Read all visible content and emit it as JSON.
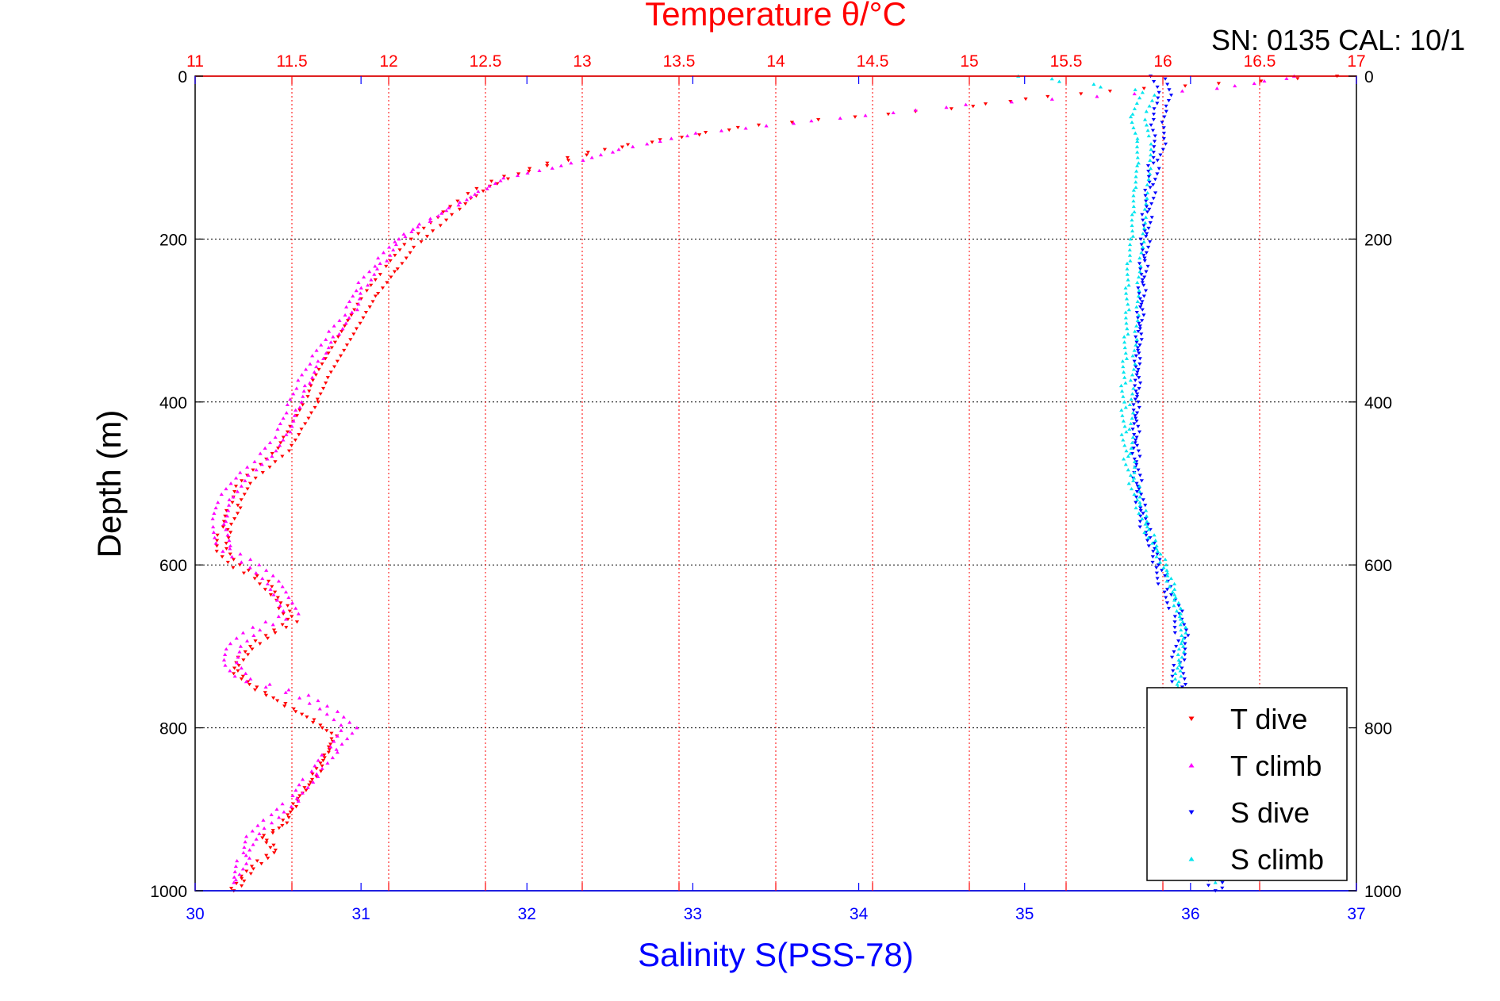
{
  "chart_data": {
    "type": "scatter",
    "title": "Temperature θ/°C",
    "annotation": "SN: 0135  CAL: 10/1",
    "ylabel": "Depth (m)",
    "xlabel_bottom": "Salinity S(PSS-78)",
    "xlabel_top": "Temperature θ/°C",
    "ylim": [
      0,
      1000
    ],
    "y_reversed": true,
    "salinity_lim": [
      30,
      37
    ],
    "temperature_lim": [
      11,
      17
    ],
    "y_ticks": [
      "0",
      "200",
      "400",
      "600",
      "800",
      "1000"
    ],
    "salinity_ticks": [
      "30",
      "31",
      "32",
      "33",
      "34",
      "35",
      "36",
      "37"
    ],
    "temperature_ticks": [
      "11",
      "11.5",
      "12",
      "12.5",
      "13",
      "13.5",
      "14",
      "14.5",
      "15",
      "15.5",
      "16",
      "16.5",
      "17"
    ],
    "grid": true,
    "legend_position": "bottom-right",
    "colors": {
      "temperature": "#ff0000",
      "salinity": "#0000ff",
      "grid": "#000000",
      "t_dive": "#ff0000",
      "t_climb": "#ff00ff",
      "s_dive": "#0000ff",
      "s_climb": "#00e5ee"
    },
    "series": [
      {
        "name": "T dive",
        "axis": "temperature",
        "marker": "triangle-down",
        "points": [
          [
            16.9,
            0
          ],
          [
            15.9,
            15
          ],
          [
            15.4,
            25
          ],
          [
            14.9,
            40
          ],
          [
            14.4,
            50
          ],
          [
            13.9,
            60
          ],
          [
            13.5,
            75
          ],
          [
            13.1,
            90
          ],
          [
            12.8,
            110
          ],
          [
            12.65,
            120
          ],
          [
            12.5,
            135
          ],
          [
            12.4,
            150
          ],
          [
            12.3,
            170
          ],
          [
            12.2,
            190
          ],
          [
            12.1,
            210
          ],
          [
            12.0,
            240
          ],
          [
            11.9,
            270
          ],
          [
            11.85,
            290
          ],
          [
            11.8,
            310
          ],
          [
            11.75,
            330
          ],
          [
            11.7,
            350
          ],
          [
            11.65,
            370
          ],
          [
            11.6,
            400
          ],
          [
            11.55,
            420
          ],
          [
            11.5,
            440
          ],
          [
            11.45,
            460
          ],
          [
            11.35,
            480
          ],
          [
            11.25,
            500
          ],
          [
            11.2,
            530
          ],
          [
            11.15,
            560
          ],
          [
            11.13,
            580
          ],
          [
            11.2,
            600
          ],
          [
            11.35,
            620
          ],
          [
            11.45,
            650
          ],
          [
            11.5,
            670
          ],
          [
            11.35,
            690
          ],
          [
            11.25,
            710
          ],
          [
            11.2,
            730
          ],
          [
            11.3,
            750
          ],
          [
            11.45,
            770
          ],
          [
            11.6,
            790
          ],
          [
            11.72,
            810
          ],
          [
            11.68,
            830
          ],
          [
            11.62,
            860
          ],
          [
            11.55,
            880
          ],
          [
            11.5,
            900
          ],
          [
            11.45,
            920
          ],
          [
            11.35,
            935
          ],
          [
            11.42,
            950
          ],
          [
            11.3,
            970
          ],
          [
            11.25,
            985
          ],
          [
            11.2,
            1000
          ]
        ]
      },
      {
        "name": "T climb",
        "axis": "temperature",
        "marker": "triangle-up",
        "points": [
          [
            16.7,
            0
          ],
          [
            16.3,
            15
          ],
          [
            15.0,
            35
          ],
          [
            14.2,
            55
          ],
          [
            13.6,
            70
          ],
          [
            13.2,
            90
          ],
          [
            12.9,
            110
          ],
          [
            12.6,
            125
          ],
          [
            12.45,
            145
          ],
          [
            12.3,
            165
          ],
          [
            12.15,
            185
          ],
          [
            12.05,
            200
          ],
          [
            11.95,
            230
          ],
          [
            11.85,
            260
          ],
          [
            11.8,
            290
          ],
          [
            11.7,
            320
          ],
          [
            11.62,
            350
          ],
          [
            11.55,
            380
          ],
          [
            11.5,
            410
          ],
          [
            11.45,
            440
          ],
          [
            11.35,
            470
          ],
          [
            11.25,
            490
          ],
          [
            11.15,
            520
          ],
          [
            11.12,
            550
          ],
          [
            11.15,
            580
          ],
          [
            11.3,
            600
          ],
          [
            11.4,
            620
          ],
          [
            11.45,
            640
          ],
          [
            11.5,
            660
          ],
          [
            11.3,
            680
          ],
          [
            11.2,
            700
          ],
          [
            11.18,
            720
          ],
          [
            11.25,
            740
          ],
          [
            11.55,
            760
          ],
          [
            11.7,
            780
          ],
          [
            11.8,
            800
          ],
          [
            11.7,
            830
          ],
          [
            11.6,
            860
          ],
          [
            11.5,
            890
          ],
          [
            11.4,
            910
          ],
          [
            11.3,
            930
          ],
          [
            11.25,
            960
          ],
          [
            11.2,
            990
          ]
        ]
      },
      {
        "name": "S dive",
        "axis": "salinity",
        "marker": "triangle-down",
        "points": [
          [
            35.8,
            0
          ],
          [
            35.85,
            20
          ],
          [
            35.82,
            40
          ],
          [
            35.8,
            60
          ],
          [
            35.82,
            80
          ],
          [
            35.78,
            110
          ],
          [
            35.76,
            140
          ],
          [
            35.74,
            170
          ],
          [
            35.73,
            200
          ],
          [
            35.72,
            230
          ],
          [
            35.71,
            260
          ],
          [
            35.7,
            290
          ],
          [
            35.69,
            320
          ],
          [
            35.68,
            350
          ],
          [
            35.68,
            380
          ],
          [
            35.67,
            410
          ],
          [
            35.67,
            440
          ],
          [
            35.67,
            470
          ],
          [
            35.68,
            500
          ],
          [
            35.7,
            530
          ],
          [
            35.73,
            560
          ],
          [
            35.78,
            580
          ],
          [
            35.8,
            600
          ],
          [
            35.85,
            630
          ],
          [
            35.92,
            660
          ],
          [
            35.95,
            690
          ],
          [
            35.92,
            720
          ],
          [
            35.93,
            750
          ],
          [
            35.95,
            780
          ],
          [
            35.98,
            810
          ],
          [
            36.02,
            850
          ],
          [
            36.05,
            890
          ],
          [
            36.1,
            930
          ],
          [
            36.15,
            970
          ],
          [
            36.15,
            1000
          ]
        ]
      },
      {
        "name": "S climb",
        "axis": "salinity",
        "marker": "triangle-up",
        "points": [
          [
            35.0,
            0
          ],
          [
            35.75,
            20
          ],
          [
            35.68,
            50
          ],
          [
            35.72,
            80
          ],
          [
            35.72,
            110
          ],
          [
            35.7,
            140
          ],
          [
            35.69,
            170
          ],
          [
            35.68,
            200
          ],
          [
            35.66,
            230
          ],
          [
            35.65,
            260
          ],
          [
            35.65,
            290
          ],
          [
            35.64,
            320
          ],
          [
            35.63,
            350
          ],
          [
            35.62,
            380
          ],
          [
            35.62,
            410
          ],
          [
            35.62,
            440
          ],
          [
            35.63,
            470
          ],
          [
            35.66,
            500
          ],
          [
            35.7,
            530
          ],
          [
            35.75,
            560
          ],
          [
            35.82,
            590
          ],
          [
            35.88,
            620
          ],
          [
            35.92,
            650
          ],
          [
            35.96,
            680
          ],
          [
            35.94,
            710
          ],
          [
            35.92,
            740
          ],
          [
            35.93,
            760
          ],
          [
            35.95,
            790
          ],
          [
            35.97,
            810
          ],
          [
            36.0,
            850
          ],
          [
            36.05,
            890
          ],
          [
            36.1,
            930
          ],
          [
            36.13,
            960
          ],
          [
            36.15,
            990
          ]
        ]
      }
    ]
  }
}
